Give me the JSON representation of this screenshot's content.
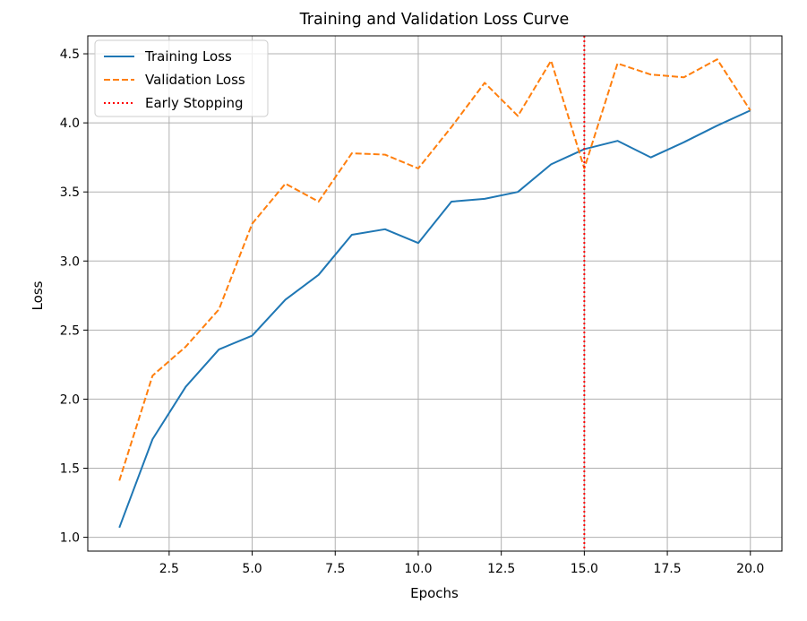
{
  "chart_data": {
    "type": "line",
    "title": "Training and Validation Loss Curve",
    "xlabel": "Epochs",
    "ylabel": "Loss",
    "xlim": [
      0.05,
      20.95
    ],
    "ylim": [
      0.9,
      4.63
    ],
    "xticks": [
      2.5,
      5.0,
      7.5,
      10.0,
      12.5,
      15.0,
      17.5,
      20.0
    ],
    "xtick_labels": [
      "2.5",
      "5.0",
      "7.5",
      "10.0",
      "12.5",
      "15.0",
      "17.5",
      "20.0"
    ],
    "yticks": [
      1.0,
      1.5,
      2.0,
      2.5,
      3.0,
      3.5,
      4.0,
      4.5
    ],
    "ytick_labels": [
      "1.0",
      "1.5",
      "2.0",
      "2.5",
      "3.0",
      "3.5",
      "4.0",
      "4.5"
    ],
    "grid": true,
    "legend_position": "top-left",
    "x": [
      1,
      2,
      3,
      4,
      5,
      6,
      7,
      8,
      9,
      10,
      11,
      12,
      13,
      14,
      15,
      16,
      17,
      18,
      19,
      20
    ],
    "series": [
      {
        "name": "Training Loss",
        "style": "solid",
        "color": "#1f77b4",
        "values": [
          1.07,
          1.71,
          2.09,
          2.36,
          2.46,
          2.72,
          2.9,
          3.19,
          3.23,
          3.13,
          3.43,
          3.45,
          3.5,
          3.7,
          3.81,
          3.87,
          3.75,
          3.86,
          3.98,
          4.09
        ]
      },
      {
        "name": "Validation Loss",
        "style": "dashed",
        "color": "#ff7f0e",
        "values": [
          1.41,
          2.17,
          2.38,
          2.65,
          3.27,
          3.56,
          3.43,
          3.78,
          3.77,
          3.67,
          3.97,
          4.29,
          4.05,
          4.45,
          3.67,
          4.43,
          4.35,
          4.33,
          4.46,
          4.09
        ]
      }
    ],
    "vertical_line": {
      "name": "Early Stopping",
      "x": 15,
      "style": "dotted",
      "color": "#ff0000"
    }
  }
}
